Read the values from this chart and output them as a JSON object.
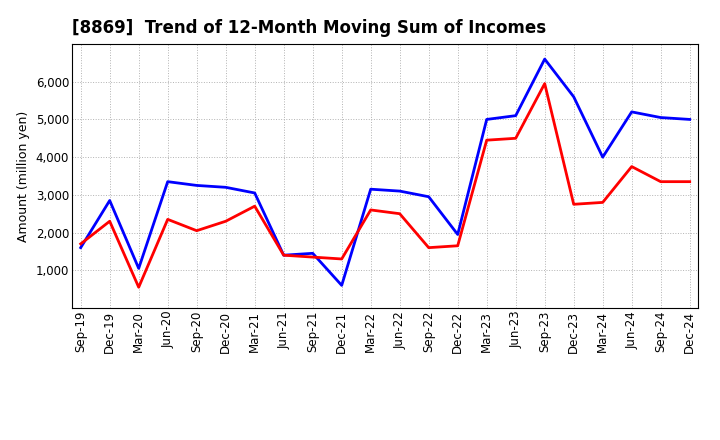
{
  "title": "[8869]  Trend of 12-Month Moving Sum of Incomes",
  "ylabel": "Amount (million yen)",
  "x_labels": [
    "Sep-19",
    "Dec-19",
    "Mar-20",
    "Jun-20",
    "Sep-20",
    "Dec-20",
    "Mar-21",
    "Jun-21",
    "Sep-21",
    "Dec-21",
    "Mar-22",
    "Jun-22",
    "Sep-22",
    "Dec-22",
    "Mar-23",
    "Jun-23",
    "Sep-23",
    "Dec-23",
    "Mar-24",
    "Jun-24",
    "Sep-24",
    "Dec-24"
  ],
  "ordinary_income": [
    1600,
    2850,
    1050,
    3350,
    3250,
    3200,
    3050,
    1400,
    1450,
    600,
    3150,
    3100,
    2950,
    1950,
    5000,
    5100,
    6600,
    5600,
    4000,
    5200,
    5050,
    5000
  ],
  "net_income": [
    1700,
    2300,
    550,
    2350,
    2050,
    2300,
    2700,
    1400,
    1350,
    1300,
    2600,
    2500,
    1600,
    1650,
    4450,
    4500,
    5950,
    2750,
    2800,
    3750,
    3350,
    3350
  ],
  "ordinary_color": "#0000FF",
  "net_color": "#FF0000",
  "ylim_min": 0,
  "ylim_max": 7000,
  "yticks": [
    1000,
    2000,
    3000,
    4000,
    5000,
    6000
  ],
  "bg_color": "#FFFFFF",
  "grid_color": "#AAAAAA",
  "title_fontsize": 12,
  "axis_fontsize": 8.5,
  "ylabel_fontsize": 9,
  "legend_fontsize": 9.5
}
